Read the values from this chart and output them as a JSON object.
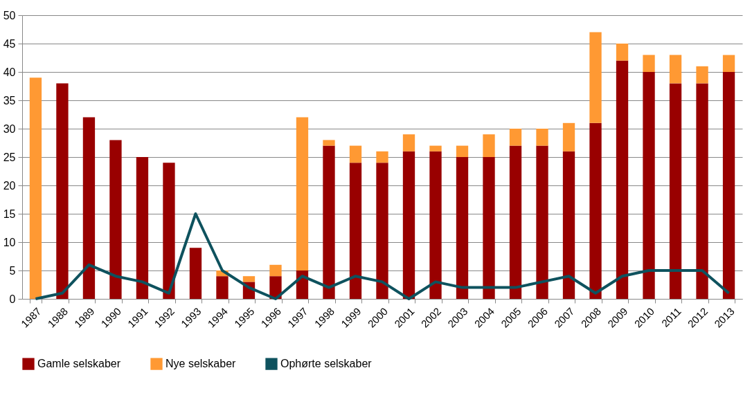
{
  "chart_data": {
    "type": "bar",
    "stacked": true,
    "categories": [
      "1987",
      "1988",
      "1989",
      "1990",
      "1991",
      "1992",
      "1993",
      "1994",
      "1995",
      "1996",
      "1997",
      "1998",
      "1999",
      "2000",
      "2001",
      "2002",
      "2003",
      "2004",
      "2005",
      "2006",
      "2007",
      "2008",
      "2009",
      "2010",
      "2011",
      "2012",
      "2013"
    ],
    "series": [
      {
        "name": "Gamle selskaber",
        "color": "#990000",
        "values": [
          0,
          38,
          32,
          28,
          25,
          24,
          9,
          4,
          3,
          4,
          5,
          27,
          24,
          24,
          26,
          26,
          25,
          25,
          27,
          27,
          26,
          31,
          42,
          40,
          38,
          38,
          40
        ]
      },
      {
        "name": "Nye selskaber",
        "color": "#ff9933",
        "values": [
          39,
          0,
          0,
          0,
          0,
          0,
          0,
          1,
          1,
          2,
          27,
          1,
          3,
          2,
          3,
          1,
          2,
          4,
          3,
          3,
          5,
          16,
          3,
          3,
          5,
          3,
          3
        ]
      },
      {
        "name": "Ophørte selskaber",
        "type": "line",
        "color": "#0e525e",
        "values": [
          0,
          1,
          6,
          4,
          3,
          1,
          15,
          5,
          2,
          0,
          4,
          2,
          4,
          3,
          0,
          3,
          2,
          2,
          2,
          3,
          4,
          1,
          4,
          5,
          5,
          5,
          1
        ]
      }
    ],
    "ylim": [
      0,
      50
    ],
    "yticks": [
      0,
      5,
      10,
      15,
      20,
      25,
      30,
      35,
      40,
      45,
      50
    ],
    "grid": "y",
    "legend": "bottom",
    "marker": "none",
    "line_style": "solid"
  }
}
